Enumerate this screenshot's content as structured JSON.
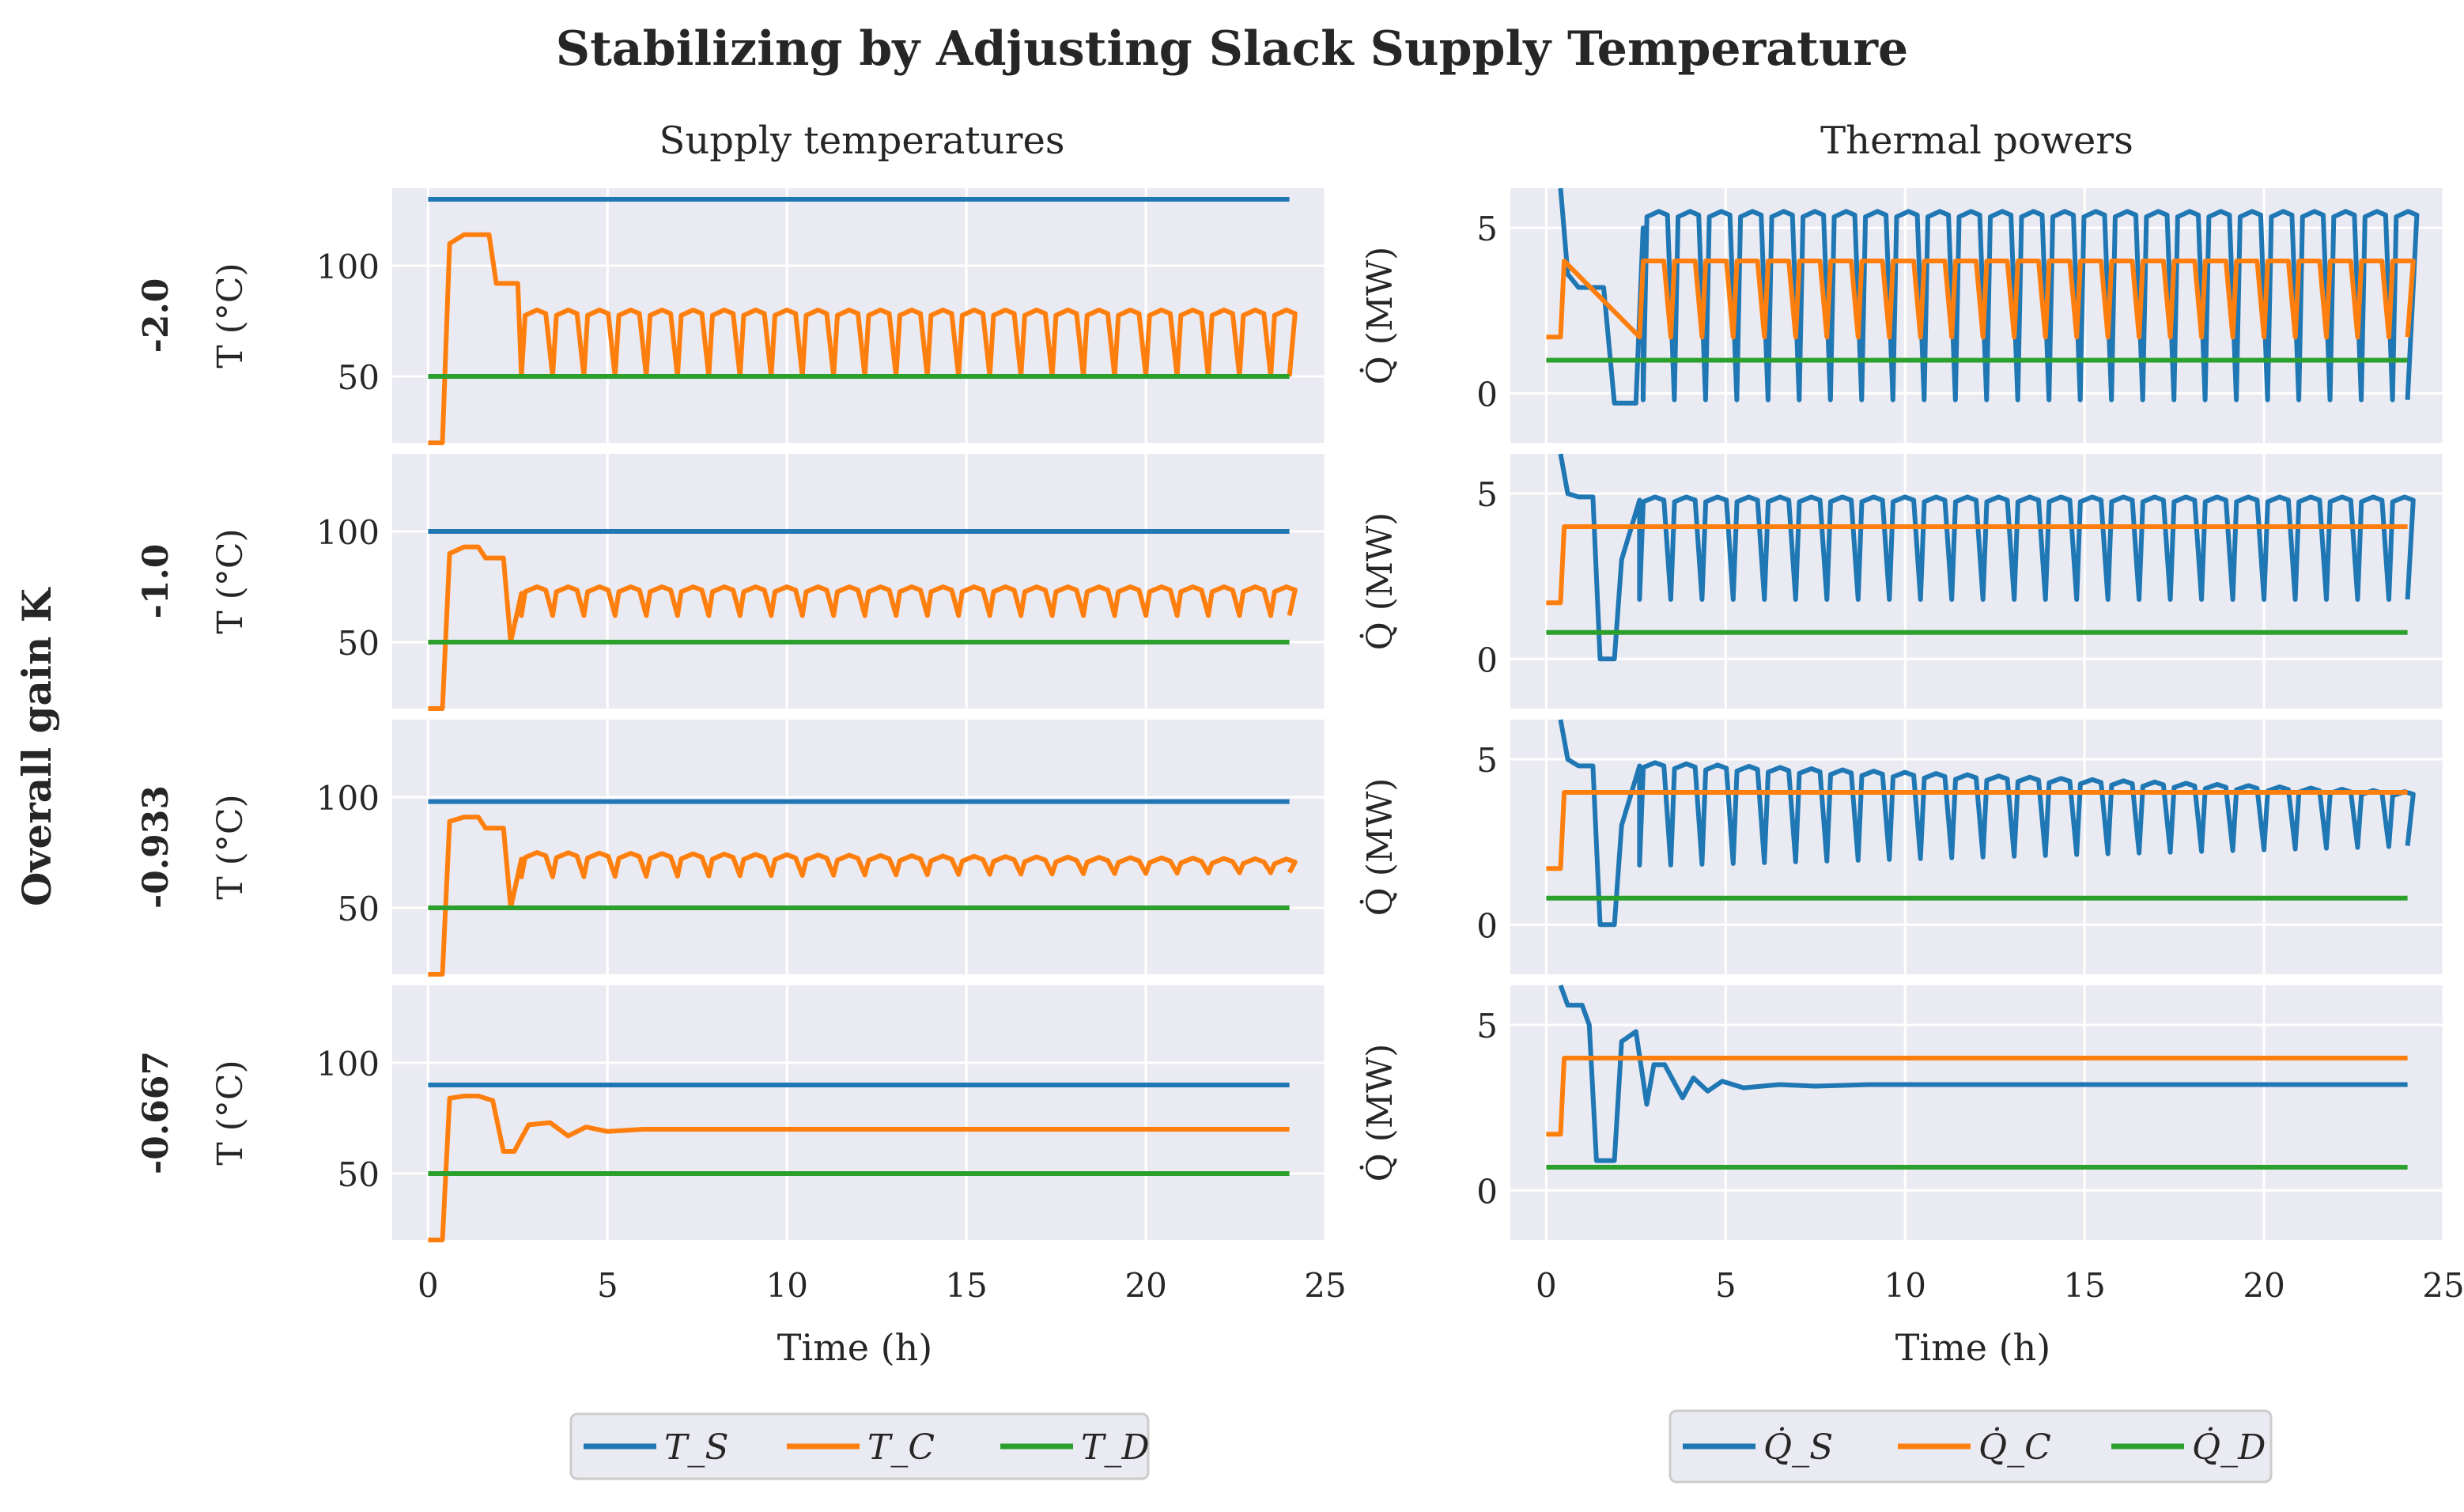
{
  "figure": {
    "title": "Stabilizing by Adjusting Slack Supply Temperature",
    "left_column_title": "Supply temperatures",
    "right_column_title": "Thermal powers",
    "row_group_label": "Overall gain K",
    "row_labels": [
      "-2.0",
      "-1.0",
      "-0.933",
      "-0.667"
    ],
    "left_ylabel": "T (°C)",
    "right_ylabel": "Q̇ (MW)",
    "xlabel": "Time (h)",
    "x_ticks": [
      "0",
      "5",
      "10",
      "15",
      "20",
      "25"
    ],
    "left_y_ticks": [
      "50",
      "100"
    ],
    "right_y_ticks": [
      "0",
      "5"
    ],
    "left_legend": [
      "T_S",
      "T_C",
      "T_D"
    ],
    "right_legend": [
      "Q̇_S",
      "Q̇_C",
      "Q̇_D"
    ],
    "colors": {
      "S": "#1f77b4",
      "C": "#ff7f0e",
      "D": "#2ca02c",
      "axes_bg": "#eaeaf2",
      "grid": "#ffffff"
    }
  },
  "chart_data": [
    {
      "type": "line",
      "panel": "temperatures",
      "gain": "-2.0",
      "xlim": [
        -1,
        25
      ],
      "ylim": [
        20,
        135
      ],
      "series": [
        {
          "name": "T_S",
          "x": [
            0,
            24
          ],
          "y": [
            130,
            130
          ]
        },
        {
          "name": "T_C",
          "x": [
            0,
            0.4,
            0.6,
            1.0,
            1.7,
            1.9,
            2.5,
            2.6,
            2.8,
            3.2,
            24
          ],
          "y": [
            20,
            20,
            110,
            114,
            114,
            92,
            92,
            50,
            75,
            80,
            79
          ],
          "oscillation": {
            "start": 2.6,
            "period": 0.87,
            "low": 50,
            "high": 80
          }
        },
        {
          "name": "T_D",
          "x": [
            0,
            24
          ],
          "y": [
            50,
            50
          ]
        }
      ]
    },
    {
      "type": "line",
      "panel": "temperatures",
      "gain": "-1.0",
      "xlim": [
        -1,
        25
      ],
      "ylim": [
        20,
        135
      ],
      "series": [
        {
          "name": "T_S",
          "x": [
            0,
            24
          ],
          "y": [
            100,
            100
          ]
        },
        {
          "name": "T_C",
          "x": [
            0,
            0.4,
            0.6,
            1.0,
            1.4,
            1.6,
            2.1,
            2.3,
            2.6,
            24
          ],
          "y": [
            20,
            20,
            90,
            93,
            93,
            88,
            88,
            50,
            72,
            75
          ],
          "oscillation": {
            "start": 2.6,
            "period": 0.87,
            "low": 62,
            "high": 75
          }
        },
        {
          "name": "T_D",
          "x": [
            0,
            24
          ],
          "y": [
            50,
            50
          ]
        }
      ]
    },
    {
      "type": "line",
      "panel": "temperatures",
      "gain": "-0.933",
      "xlim": [
        -1,
        25
      ],
      "ylim": [
        20,
        135
      ],
      "series": [
        {
          "name": "T_S",
          "x": [
            0,
            24
          ],
          "y": [
            98,
            98
          ]
        },
        {
          "name": "T_C",
          "x": [
            0,
            0.4,
            0.6,
            1.0,
            1.4,
            1.6,
            2.1,
            2.3,
            2.6,
            24
          ],
          "y": [
            20,
            20,
            89,
            91,
            91,
            86,
            86,
            50,
            72,
            72
          ],
          "oscillation": {
            "start": 2.6,
            "period": 0.87,
            "low": 64,
            "high": 75,
            "final_low": 66,
            "final_high": 72
          }
        },
        {
          "name": "T_D",
          "x": [
            0,
            24
          ],
          "y": [
            50,
            50
          ]
        }
      ]
    },
    {
      "type": "line",
      "panel": "temperatures",
      "gain": "-0.667",
      "xlim": [
        -1,
        25
      ],
      "ylim": [
        20,
        135
      ],
      "series": [
        {
          "name": "T_S",
          "x": [
            0,
            24
          ],
          "y": [
            90,
            90
          ]
        },
        {
          "name": "T_C",
          "x": [
            0,
            0.4,
            0.6,
            1.0,
            1.4,
            1.8,
            2.1,
            2.4,
            2.8,
            3.4,
            3.9,
            4.4,
            5.0,
            6.0,
            8.0,
            24
          ],
          "y": [
            20,
            20,
            84,
            85,
            85,
            83,
            60,
            60,
            72,
            73,
            67,
            71,
            69,
            70,
            70,
            70
          ]
        },
        {
          "name": "T_D",
          "x": [
            0,
            24
          ],
          "y": [
            50,
            50
          ]
        }
      ]
    },
    {
      "type": "line",
      "panel": "powers",
      "gain": "-2.0",
      "xlim": [
        -1,
        25
      ],
      "ylim": [
        -1.5,
        6.2
      ],
      "series": [
        {
          "name": "Q_S",
          "x": [
            0.4,
            0.6,
            0.9,
            1.6,
            1.9,
            2.0,
            2.5,
            2.7
          ],
          "y": [
            6.2,
            3.6,
            3.2,
            3.2,
            -0.3,
            -0.3,
            -0.3,
            5.0
          ],
          "oscillation": {
            "start": 2.7,
            "period": 0.87,
            "low": -0.2,
            "high": 5.5
          }
        },
        {
          "name": "Q_C",
          "x": [
            0,
            0.4,
            0.5,
            24
          ],
          "y": [
            1.7,
            1.7,
            4.0,
            4.0
          ],
          "oscillation": {
            "start": 2.6,
            "period": 0.87,
            "low": 1.7,
            "high": 4.0
          }
        },
        {
          "name": "Q_D",
          "x": [
            0,
            24
          ],
          "y": [
            1.0,
            1.0
          ]
        }
      ]
    },
    {
      "type": "line",
      "panel": "powers",
      "gain": "-1.0",
      "xlim": [
        -1,
        25
      ],
      "ylim": [
        -1.5,
        6.2
      ],
      "series": [
        {
          "name": "Q_S",
          "x": [
            0.4,
            0.6,
            0.9,
            1.3,
            1.5,
            1.9,
            2.1,
            2.6
          ],
          "y": [
            6.2,
            5.0,
            4.9,
            4.9,
            0.0,
            0.0,
            3.0,
            4.8
          ],
          "oscillation": {
            "start": 2.6,
            "period": 0.87,
            "low": 1.8,
            "high": 4.9
          }
        },
        {
          "name": "Q_C",
          "x": [
            0,
            0.4,
            0.5,
            24
          ],
          "y": [
            1.7,
            1.7,
            4.0,
            4.0
          ]
        },
        {
          "name": "Q_D",
          "x": [
            0,
            24
          ],
          "y": [
            0.8,
            0.8
          ]
        }
      ]
    },
    {
      "type": "line",
      "panel": "powers",
      "gain": "-0.933",
      "xlim": [
        -1,
        25
      ],
      "ylim": [
        -1.5,
        6.2
      ],
      "series": [
        {
          "name": "Q_S",
          "x": [
            0.4,
            0.6,
            0.9,
            1.3,
            1.5,
            1.9,
            2.1,
            2.6
          ],
          "y": [
            6.2,
            5.0,
            4.8,
            4.8,
            0.0,
            0.0,
            3.0,
            4.8
          ],
          "oscillation": {
            "start": 2.6,
            "period": 0.87,
            "low": 1.8,
            "high": 4.9,
            "final_low": 2.4,
            "final_high": 4.0
          }
        },
        {
          "name": "Q_C",
          "x": [
            0,
            0.4,
            0.5,
            24
          ],
          "y": [
            1.7,
            1.7,
            4.0,
            4.0
          ]
        },
        {
          "name": "Q_D",
          "x": [
            0,
            24
          ],
          "y": [
            0.8,
            0.8
          ]
        }
      ]
    },
    {
      "type": "line",
      "panel": "powers",
      "gain": "-0.667",
      "xlim": [
        -1,
        25
      ],
      "ylim": [
        -1.5,
        6.2
      ],
      "series": [
        {
          "name": "Q_S",
          "x": [
            0.4,
            0.6,
            1.0,
            1.2,
            1.4,
            1.9,
            2.1,
            2.5,
            2.8,
            3.0,
            3.3,
            3.8,
            4.1,
            4.5,
            4.9,
            5.5,
            6.5,
            7.5,
            9.0,
            24
          ],
          "y": [
            6.2,
            5.6,
            5.6,
            5.0,
            0.9,
            0.9,
            4.5,
            4.8,
            2.6,
            3.8,
            3.8,
            2.8,
            3.4,
            3.0,
            3.3,
            3.1,
            3.2,
            3.15,
            3.2,
            3.2
          ]
        },
        {
          "name": "Q_C",
          "x": [
            0,
            0.4,
            0.5,
            24
          ],
          "y": [
            1.7,
            1.7,
            4.0,
            4.0
          ]
        },
        {
          "name": "Q_D",
          "x": [
            0,
            24
          ],
          "y": [
            0.7,
            0.7
          ]
        }
      ]
    }
  ]
}
